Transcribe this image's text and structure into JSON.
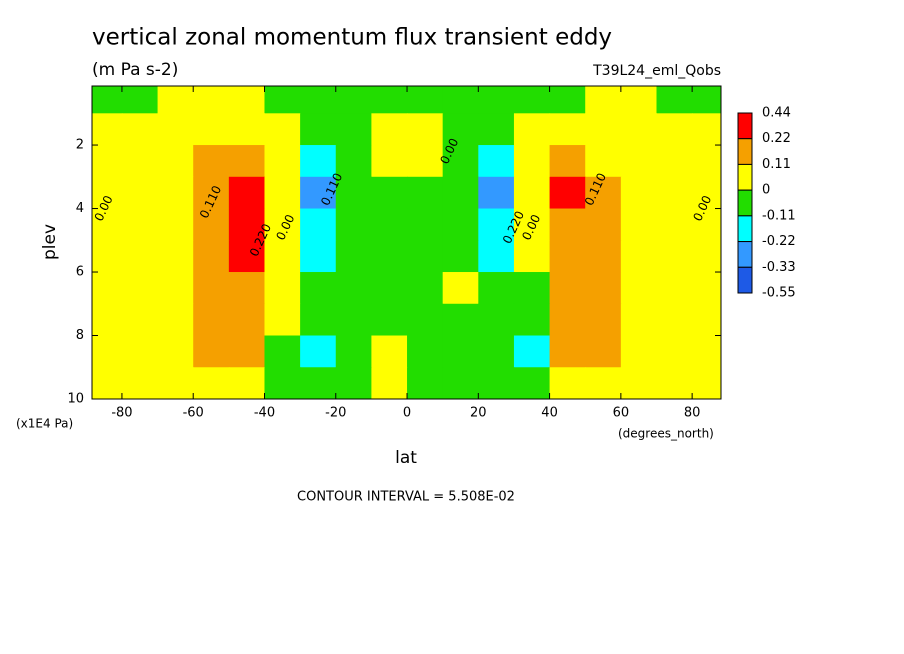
{
  "chart_data": {
    "type": "contour",
    "title": "vertical zonal momentum flux transient eddy",
    "subtitle": "(m Pa s-2)",
    "dataset": "T39L24_eml_Qobs",
    "x_label": "lat",
    "x_units": "(degrees_north)",
    "y_label": "plev",
    "y_units": "(x1E4 Pa)",
    "footnote": "CONTOUR INTERVAL = 5.508E-02",
    "xlim": [
      -88.4,
      88.1
    ],
    "xticks": [
      -80,
      -60,
      -40,
      -20,
      0,
      20,
      40,
      60,
      80
    ],
    "ylim": [
      10,
      0.14
    ],
    "yticks": [
      2,
      4,
      6,
      8,
      10
    ],
    "x": [
      -85,
      -75,
      -65,
      -55,
      -45,
      -35,
      -25,
      -15,
      -5,
      5,
      15,
      25,
      35,
      45,
      55,
      65,
      75,
      85
    ],
    "y": [
      0.5,
      1.5,
      2.5,
      3.5,
      4.5,
      5.5,
      6.5,
      7.5,
      8.5,
      9.5
    ],
    "z": [
      [
        -0.02,
        -0.02,
        0.03,
        0.03,
        0.03,
        -0.02,
        -0.02,
        -0.02,
        -0.02,
        -0.02,
        -0.02,
        -0.02,
        -0.02,
        -0.02,
        0.03,
        0.03,
        -0.02,
        -0.02
      ],
      [
        0.03,
        0.03,
        0.03,
        0.05,
        0.05,
        0.02,
        -0.05,
        -0.03,
        0.03,
        0.03,
        -0.03,
        -0.05,
        0.02,
        0.05,
        0.05,
        0.03,
        0.03,
        0.03
      ],
      [
        0.03,
        0.04,
        0.08,
        0.15,
        0.15,
        0.03,
        -0.15,
        -0.05,
        0.03,
        0.03,
        -0.05,
        -0.18,
        0.03,
        0.15,
        0.1,
        0.05,
        0.03,
        0.03
      ],
      [
        0.02,
        0.04,
        0.1,
        0.2,
        0.3,
        0.05,
        -0.3,
        -0.08,
        -0.02,
        -0.02,
        -0.08,
        -0.3,
        0.05,
        0.3,
        0.15,
        0.06,
        0.03,
        0.02
      ],
      [
        0.02,
        0.04,
        0.1,
        0.2,
        0.3,
        0.05,
        -0.2,
        -0.08,
        -0.02,
        -0.02,
        -0.08,
        -0.2,
        0.02,
        0.2,
        0.15,
        0.06,
        0.03,
        0.02
      ],
      [
        0.02,
        0.04,
        0.08,
        0.18,
        0.25,
        0.04,
        -0.12,
        -0.05,
        -0.02,
        -0.02,
        -0.05,
        -0.12,
        0.02,
        0.18,
        0.13,
        0.05,
        0.03,
        0.02
      ],
      [
        0.02,
        0.03,
        0.07,
        0.15,
        0.16,
        0.03,
        -0.05,
        -0.03,
        -0.02,
        -0.02,
        0.01,
        -0.05,
        -0.02,
        0.15,
        0.12,
        0.05,
        0.02,
        0.02
      ],
      [
        0.02,
        0.03,
        0.06,
        0.13,
        0.14,
        0.02,
        -0.05,
        -0.02,
        -0.02,
        -0.02,
        -0.02,
        -0.03,
        -0.1,
        0.13,
        0.12,
        0.05,
        0.02,
        0.02
      ],
      [
        0.02,
        0.03,
        0.05,
        0.12,
        0.13,
        -0.03,
        -0.12,
        -0.03,
        0.01,
        -0.02,
        -0.02,
        -0.03,
        -0.12,
        0.12,
        0.12,
        0.04,
        0.02,
        0.02
      ],
      [
        0.02,
        0.03,
        0.04,
        0.06,
        0.06,
        -0.03,
        -0.05,
        -0.03,
        0.01,
        -0.02,
        -0.02,
        -0.03,
        -0.05,
        0.06,
        0.06,
        0.04,
        0.02,
        0.02
      ]
    ],
    "levels": [
      -0.55,
      -0.33,
      -0.22,
      -0.11,
      0,
      0.11,
      0.22,
      0.44
    ],
    "colors": [
      "#1e5ae6",
      "#3399ff",
      "#00ffff",
      "#22dd00",
      "#ffff00",
      "#f5a000",
      "#ff0000"
    ],
    "contour_labels": [
      {
        "text": "0.00",
        "x": -85,
        "y": 4
      },
      {
        "text": "0.110",
        "x": -55,
        "y": 3.8
      },
      {
        "text": "0.220",
        "x": -41,
        "y": 5
      },
      {
        "text": "0.00",
        "x": -34,
        "y": 4.6
      },
      {
        "text": "0.110",
        "x": -21,
        "y": 3.4
      },
      {
        "text": "0.00",
        "x": 12,
        "y": 2.2
      },
      {
        "text": "0.220",
        "x": 30,
        "y": 4.6
      },
      {
        "text": "0.00",
        "x": 35,
        "y": 4.6
      },
      {
        "text": "0.110",
        "x": 53,
        "y": 3.4
      },
      {
        "text": "0.00",
        "x": 83,
        "y": 4
      }
    ]
  }
}
